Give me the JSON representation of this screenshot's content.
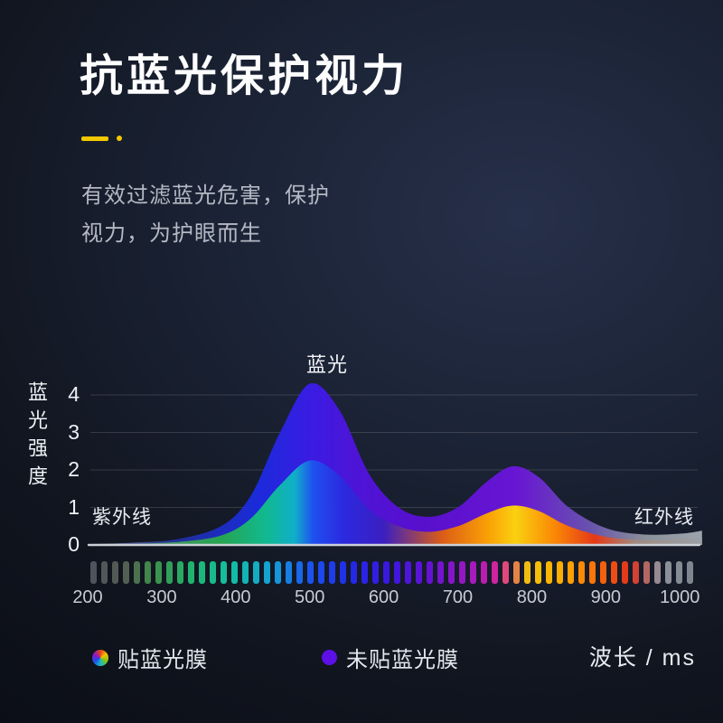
{
  "page": {
    "title": "抗蓝光保护视力",
    "subtitle_line1": "有效过滤蓝光危害，保护",
    "subtitle_line2": "视力，为护眼而生"
  },
  "colors": {
    "accent_yellow": "#f5c800",
    "legend_purple": "#5c10e6",
    "baseline_gray": "#ccd1d8",
    "background_navy": "#141a28"
  },
  "chart_data": {
    "type": "area",
    "title": "",
    "x_label": "波长 / ms",
    "y_label": "蓝光强度",
    "x_range": [
      200,
      1030
    ],
    "y_range": [
      0,
      4.5
    ],
    "x_ticks": [
      200,
      300,
      400,
      500,
      600,
      700,
      800,
      900,
      1000
    ],
    "y_ticks": [
      0,
      1,
      2,
      3,
      4
    ],
    "grid": true,
    "legend_position": "bottom",
    "annotations": {
      "peak_label": "蓝光",
      "left_label": "紫外线",
      "right_label": "红外线"
    },
    "series": [
      {
        "name": "未贴蓝光膜",
        "x": [
          200,
          260,
          320,
          380,
          420,
          460,
          500,
          540,
          580,
          620,
          660,
          700,
          740,
          775,
          810,
          850,
          900,
          950,
          1000,
          1030
        ],
        "values": [
          0.02,
          0.06,
          0.15,
          0.5,
          1.3,
          3.0,
          4.3,
          3.6,
          1.9,
          1.0,
          0.75,
          1.0,
          1.7,
          2.1,
          1.8,
          1.0,
          0.45,
          0.28,
          0.3,
          0.38
        ],
        "gradient": [
          [
            200,
            "#7a828c"
          ],
          [
            320,
            "#1f2f9e"
          ],
          [
            430,
            "#1b2be0"
          ],
          [
            500,
            "#3a1ce8"
          ],
          [
            560,
            "#4f14dc"
          ],
          [
            650,
            "#5a0fd2"
          ],
          [
            780,
            "#6a16d8"
          ],
          [
            880,
            "#6a55b0"
          ],
          [
            950,
            "#8d939c"
          ],
          [
            1030,
            "#a2a8b0"
          ]
        ]
      },
      {
        "name": "贴蓝光膜",
        "x": [
          200,
          260,
          320,
          380,
          420,
          460,
          500,
          540,
          580,
          620,
          660,
          700,
          740,
          775,
          810,
          850,
          900,
          950,
          1000,
          1030
        ],
        "values": [
          0.01,
          0.03,
          0.08,
          0.25,
          0.7,
          1.6,
          2.25,
          1.85,
          0.95,
          0.5,
          0.35,
          0.5,
          0.85,
          1.05,
          0.9,
          0.5,
          0.22,
          0.13,
          0.15,
          0.2
        ],
        "gradient": [
          [
            200,
            "#777f88"
          ],
          [
            380,
            "#27a84e"
          ],
          [
            440,
            "#11bd8c"
          ],
          [
            480,
            "#0fb3c9"
          ],
          [
            505,
            "#1e52f0"
          ],
          [
            545,
            "#2b2ae0"
          ],
          [
            600,
            "#3a1fc0"
          ],
          [
            680,
            "#e06010"
          ],
          [
            740,
            "#ffa400"
          ],
          [
            778,
            "#ffd60a"
          ],
          [
            830,
            "#ff8c00"
          ],
          [
            885,
            "#e83812"
          ],
          [
            940,
            "#a08a80"
          ],
          [
            1030,
            "#9aa0a8"
          ]
        ]
      }
    ],
    "legend": [
      {
        "label": "贴蓝光膜",
        "icon": "color-wheel"
      },
      {
        "label": "未贴蓝光膜",
        "icon": "purple-dot",
        "color": "#5c10e6"
      }
    ],
    "spectrum_strip_stops": [
      [
        0.0,
        "#4e545c"
      ],
      [
        0.05,
        "#545b52"
      ],
      [
        0.1,
        "#3f8e4a"
      ],
      [
        0.16,
        "#21b36b"
      ],
      [
        0.23,
        "#12bfa2"
      ],
      [
        0.3,
        "#14a0d6"
      ],
      [
        0.36,
        "#1a55f0"
      ],
      [
        0.43,
        "#222ae8"
      ],
      [
        0.5,
        "#3c17e0"
      ],
      [
        0.57,
        "#6a12d2"
      ],
      [
        0.63,
        "#a018c0"
      ],
      [
        0.68,
        "#d8259a"
      ],
      [
        0.73,
        "#f2c50a"
      ],
      [
        0.79,
        "#ffab00"
      ],
      [
        0.85,
        "#f7650a"
      ],
      [
        0.9,
        "#e0301c"
      ],
      [
        0.95,
        "#8f949c"
      ],
      [
        1.0,
        "#80868e"
      ]
    ]
  }
}
